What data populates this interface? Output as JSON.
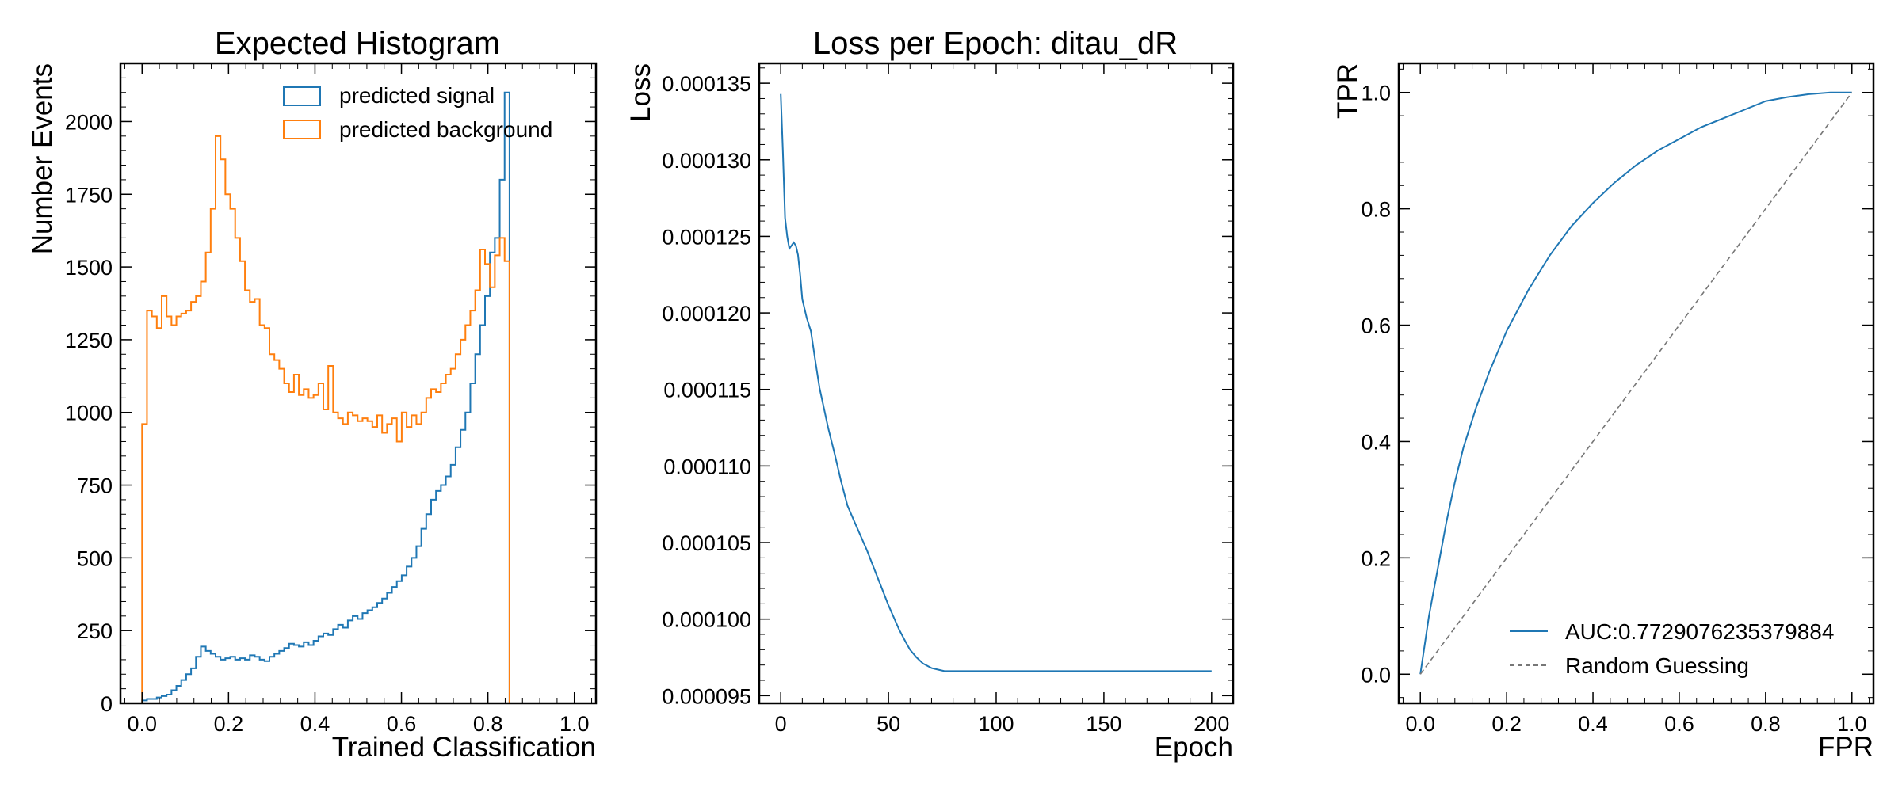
{
  "colors": {
    "signal": "#1f77b4",
    "background": "#ff7f0e",
    "diagonal": "#777777"
  },
  "chart_data": [
    {
      "type": "histogram",
      "title": "Expected Histogram",
      "xlabel": "Trained Classification",
      "ylabel": "Number Events",
      "xlim": [
        -0.05,
        1.05
      ],
      "ylim": [
        0,
        2200
      ],
      "xticks": [
        "0.0",
        "0.2",
        "0.4",
        "0.6",
        "0.8",
        "1.0"
      ],
      "yticks": [
        "0",
        "250",
        "500",
        "750",
        "1000",
        "1250",
        "1500",
        "1750",
        "2000"
      ],
      "legend_position": "top-right",
      "bin_edges_range": [
        0.0,
        0.85
      ],
      "series": [
        {
          "name": "predicted signal",
          "color": "#1f77b4",
          "values": [
            10,
            15,
            15,
            20,
            25,
            30,
            45,
            60,
            80,
            100,
            120,
            160,
            195,
            180,
            170,
            160,
            150,
            155,
            160,
            150,
            155,
            150,
            165,
            160,
            150,
            145,
            160,
            170,
            180,
            190,
            205,
            200,
            195,
            210,
            200,
            215,
            230,
            240,
            235,
            255,
            270,
            260,
            285,
            300,
            290,
            310,
            320,
            330,
            345,
            360,
            380,
            400,
            420,
            440,
            470,
            500,
            540,
            600,
            650,
            700,
            730,
            750,
            780,
            820,
            880,
            940,
            1000,
            1100,
            1200,
            1300,
            1400,
            1550,
            1600,
            1800,
            2100
          ]
        },
        {
          "name": "predicted background",
          "color": "#ff7f0e",
          "values": [
            960,
            1350,
            1330,
            1290,
            1400,
            1330,
            1300,
            1330,
            1340,
            1350,
            1380,
            1400,
            1450,
            1550,
            1700,
            1950,
            1870,
            1750,
            1700,
            1600,
            1520,
            1420,
            1380,
            1390,
            1300,
            1290,
            1200,
            1180,
            1150,
            1100,
            1070,
            1130,
            1060,
            1080,
            1050,
            1060,
            1100,
            1010,
            1160,
            1000,
            980,
            960,
            1000,
            990,
            970,
            980,
            970,
            950,
            990,
            930,
            960,
            980,
            900,
            1000,
            950,
            990,
            960,
            1000,
            1050,
            1080,
            1070,
            1100,
            1130,
            1150,
            1200,
            1250,
            1300,
            1350,
            1420,
            1560,
            1510,
            1430,
            1540,
            1600,
            1520
          ]
        }
      ]
    },
    {
      "type": "line",
      "title": "Loss per Epoch: ditau_dR",
      "xlabel": "Epoch",
      "ylabel": "Loss",
      "xlim": [
        -10,
        210
      ],
      "ylim": [
        9.45e-05,
        0.0001363
      ],
      "xticks": [
        "0",
        "50",
        "100",
        "150",
        "200"
      ],
      "yticks": [
        "0.000095",
        "0.000100",
        "0.000105",
        "0.000110",
        "0.000115",
        "0.000120",
        "0.000125",
        "0.000130",
        "0.000135"
      ],
      "series": [
        {
          "name": "",
          "color": "#1f77b4",
          "x": [
            0,
            1,
            2,
            3,
            4,
            5,
            6,
            7,
            8,
            9,
            10,
            12,
            14,
            16,
            18,
            20,
            22,
            25,
            28,
            31,
            35,
            40,
            45,
            50,
            55,
            58,
            60,
            63,
            66,
            70,
            73,
            76,
            80,
            90,
            100,
            120,
            150,
            175,
            200
          ],
          "y": [
            0.0001343,
            0.0001305,
            0.0001262,
            0.000125,
            0.0001242,
            0.0001244,
            0.0001246,
            0.0001244,
            0.0001238,
            0.0001225,
            0.0001209,
            0.0001197,
            0.0001188,
            0.0001169,
            0.0001151,
            0.0001138,
            0.0001125,
            0.0001108,
            0.000109,
            0.0001074,
            0.0001061,
            0.0001045,
            0.0001027,
            0.0001009,
            9.93e-05,
            9.85e-05,
            9.8e-05,
            9.75e-05,
            9.71e-05,
            9.68e-05,
            9.67e-05,
            9.66e-05,
            9.66e-05,
            9.66e-05,
            9.66e-05,
            9.66e-05,
            9.66e-05,
            9.66e-05,
            9.66e-05
          ]
        }
      ]
    },
    {
      "type": "line",
      "title": "",
      "xlabel": "FPR",
      "ylabel": "TPR",
      "xlim": [
        -0.05,
        1.05
      ],
      "ylim": [
        -0.05,
        1.05
      ],
      "xticks": [
        "0.0",
        "0.2",
        "0.4",
        "0.6",
        "0.8",
        "1.0"
      ],
      "yticks": [
        "0.0",
        "0.2",
        "0.4",
        "0.6",
        "0.8",
        "1.0"
      ],
      "legend_position": "bottom-right",
      "series": [
        {
          "name": "AUC:0.7729076235379884",
          "color": "#1f77b4",
          "x": [
            0,
            0.01,
            0.02,
            0.04,
            0.06,
            0.08,
            0.1,
            0.13,
            0.16,
            0.2,
            0.25,
            0.3,
            0.35,
            0.4,
            0.45,
            0.5,
            0.55,
            0.6,
            0.65,
            0.7,
            0.75,
            0.8,
            0.85,
            0.9,
            0.95,
            1.0
          ],
          "y": [
            0,
            0.05,
            0.1,
            0.18,
            0.26,
            0.33,
            0.39,
            0.46,
            0.52,
            0.59,
            0.66,
            0.72,
            0.77,
            0.81,
            0.845,
            0.875,
            0.9,
            0.92,
            0.94,
            0.955,
            0.97,
            0.985,
            0.992,
            0.997,
            1.0,
            1.0
          ]
        },
        {
          "name": "Random Guessing",
          "color": "#777777",
          "dashed": true,
          "x": [
            0,
            1
          ],
          "y": [
            0,
            1
          ]
        }
      ]
    }
  ]
}
